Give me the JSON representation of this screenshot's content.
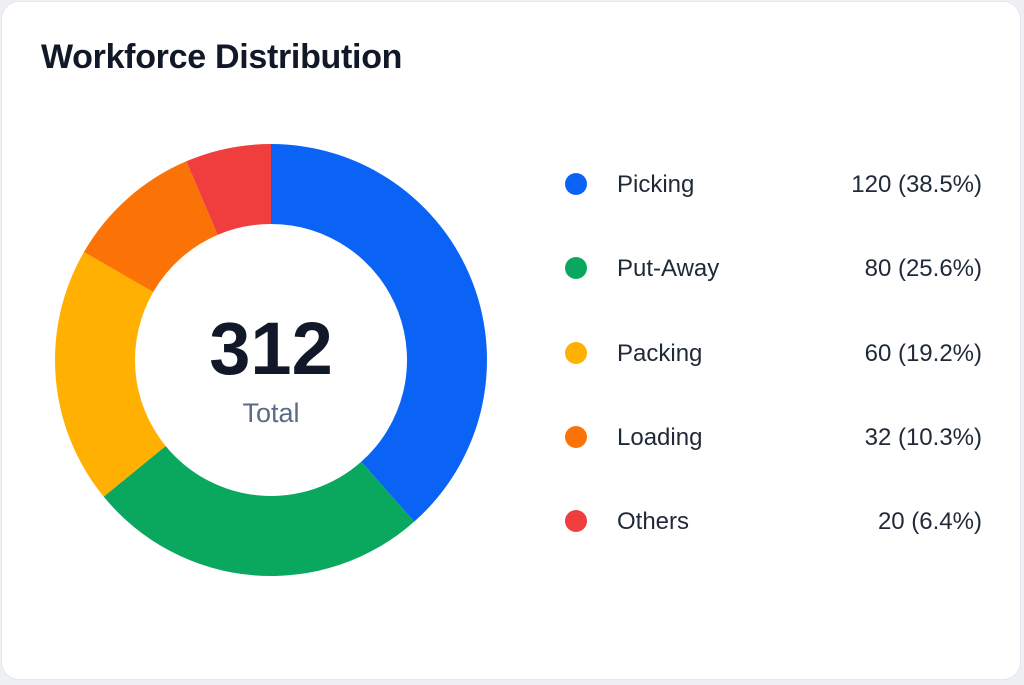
{
  "chart_data": {
    "type": "pie",
    "title": "Workforce Distribution",
    "center_value": "312",
    "center_label": "Total",
    "total": 312,
    "slices": [
      {
        "label": "Picking",
        "value": 120,
        "display": "120 (38.5%)",
        "color": "#0b63f6"
      },
      {
        "label": "Put-Away",
        "value": 80,
        "display": "80 (25.6%)",
        "color": "#0aa85f"
      },
      {
        "label": "Packing",
        "value": 60,
        "display": "60 (19.2%)",
        "color": "#ffb000"
      },
      {
        "label": "Loading",
        "value": 32,
        "display": "32 (10.3%)",
        "color": "#fb7306"
      },
      {
        "label": "Others",
        "value": 20,
        "display": "20 (6.4%)",
        "color": "#f03e3e"
      }
    ],
    "legend_position": "right"
  }
}
